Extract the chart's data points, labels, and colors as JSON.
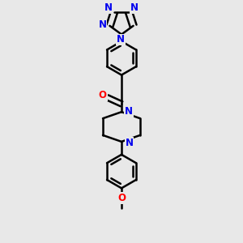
{
  "bg_color": "#e8e8e8",
  "bond_color": "#000000",
  "bond_width": 1.8,
  "atom_colors": {
    "N": "#0000ee",
    "O": "#ff0000",
    "C": "#000000"
  },
  "font_size_atom": 8.5,
  "fig_size": [
    3.0,
    3.0
  ],
  "dpi": 100,
  "xlim": [
    0.25,
    0.75
  ],
  "ylim": [
    0.03,
    0.97
  ]
}
